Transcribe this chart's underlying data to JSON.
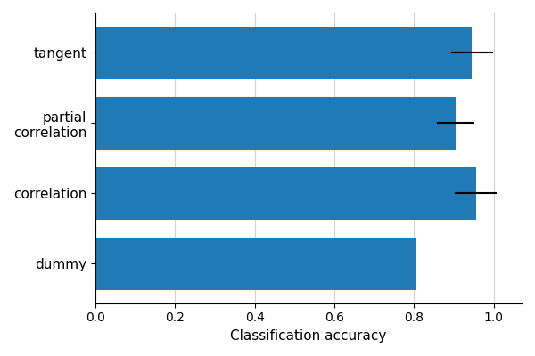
{
  "categories": [
    "dummy",
    "correlation",
    "partial\ncorrelation",
    "tangent"
  ],
  "values": [
    0.805,
    0.955,
    0.905,
    0.945
  ],
  "errors": [
    0.0,
    0.05,
    0.045,
    0.05
  ],
  "bar_color": "#1f7ab5",
  "xlabel": "Classification accuracy",
  "xlim": [
    0.0,
    1.07
  ],
  "xticks": [
    0.0,
    0.2,
    0.4,
    0.6,
    0.8,
    1.0
  ],
  "grid": true,
  "figsize": [
    6.0,
    4.0
  ],
  "dpi": 100
}
